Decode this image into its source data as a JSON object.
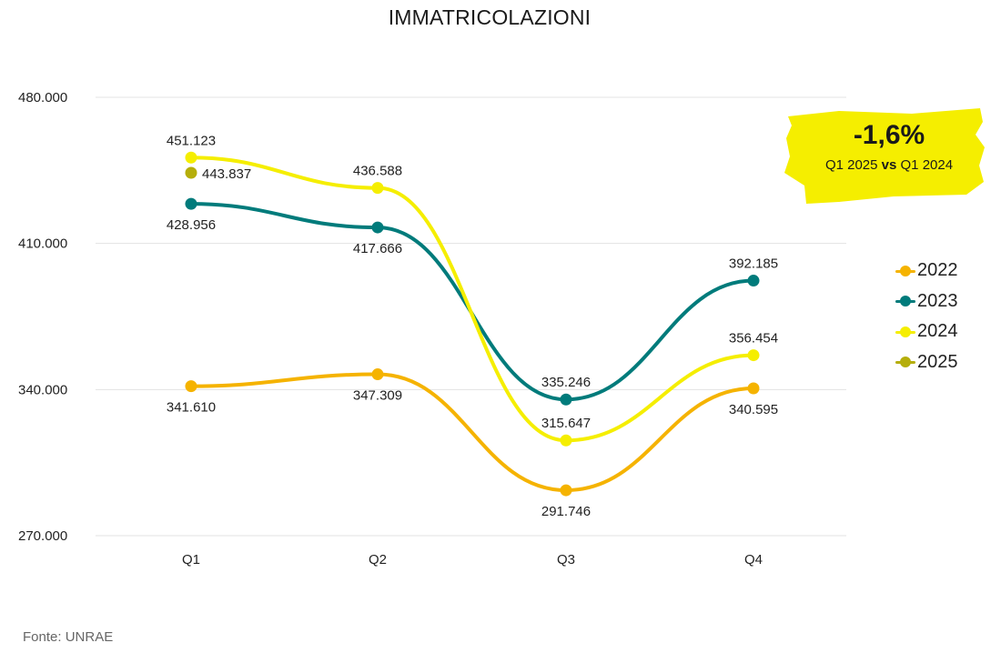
{
  "chart_data": {
    "type": "line",
    "title": "IMMATRICOLAZIONI",
    "categories": [
      "Q1",
      "Q2",
      "Q3",
      "Q4"
    ],
    "ylim": [
      270000,
      480000
    ],
    "yticks": [
      {
        "value": 270000,
        "label": "270.000"
      },
      {
        "value": 340000,
        "label": "340.000"
      },
      {
        "value": 410000,
        "label": "410.000"
      },
      {
        "value": 480000,
        "label": "480.000"
      }
    ],
    "grid": true,
    "legend_position": "right",
    "series": [
      {
        "name": "2022",
        "color": "#F5B300",
        "values": [
          341610,
          347309,
          291746,
          340595
        ],
        "labels": [
          "341.610",
          "347.309",
          "291.746",
          "340.595"
        ],
        "label_pos": [
          "below",
          "below",
          "below",
          "below"
        ]
      },
      {
        "name": "2023",
        "color": "#007B7B",
        "values": [
          428956,
          417666,
          335246,
          392185
        ],
        "labels": [
          "428.956",
          "417.666",
          "335.246",
          "392.185"
        ],
        "label_pos": [
          "below",
          "below",
          "above",
          "above"
        ]
      },
      {
        "name": "2024",
        "color": "#F5EE00",
        "values": [
          451123,
          436588,
          315647,
          356454
        ],
        "labels": [
          "451.123",
          "436.588",
          "315.647",
          "356.454"
        ],
        "label_pos": [
          "above",
          "above",
          "above",
          "above"
        ]
      },
      {
        "name": "2025",
        "color": "#B5AE0A",
        "values": [
          443837,
          null,
          null,
          null
        ],
        "labels": [
          "443.837",
          null,
          null,
          null
        ],
        "label_pos": [
          "right",
          null,
          null,
          null
        ]
      }
    ]
  },
  "highlight": {
    "value": "-1,6%",
    "caption_part1": "Q1 2025",
    "caption_vs": "vs",
    "caption_part2": "Q1 2024",
    "background_color": "#F5EE00"
  },
  "source_note": "Fonte: UNRAE"
}
